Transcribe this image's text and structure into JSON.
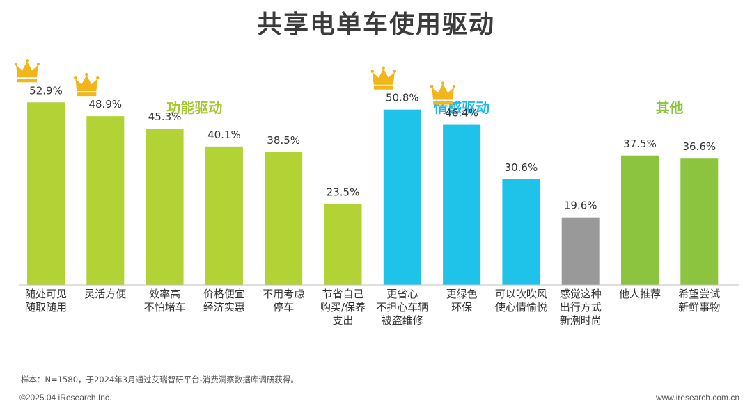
{
  "title": "共享电单车使用驱动",
  "chart_data": {
    "type": "bar",
    "unit": "%",
    "ylim": [
      0,
      60
    ],
    "groups": [
      {
        "label": "功能驱动",
        "color": "#b2d235",
        "label_color": "#a4c832",
        "start": 0,
        "end": 5
      },
      {
        "label": "情感驱动",
        "color": "#1fc3ea",
        "label_color": "#1cb8e6",
        "start": 6,
        "end": 8
      },
      {
        "label": "其他",
        "color": "#8cc43f",
        "label_color": "#8cc43f",
        "start": 10,
        "end": 11
      }
    ],
    "categories": [
      [
        "随处可见",
        "随取随用"
      ],
      [
        "灵活方便"
      ],
      [
        "效率高",
        "不怕堵车"
      ],
      [
        "价格便宜",
        "经济实惠"
      ],
      [
        "不用考虑",
        "停车"
      ],
      [
        "节省自己",
        "购买/保养",
        "支出"
      ],
      [
        "更省心",
        "不担心车辆",
        "被盗维修"
      ],
      [
        "更绿色",
        "环保"
      ],
      [
        "可以吹吹风",
        "使心情愉悦"
      ],
      [
        "感觉这种",
        "出行方式",
        "新潮时尚"
      ],
      [
        "他人推荐"
      ],
      [
        "希望尝试",
        "新鲜事物"
      ]
    ],
    "values": [
      52.9,
      48.9,
      45.3,
      40.1,
      38.5,
      23.5,
      50.8,
      46.4,
      30.6,
      19.6,
      37.5,
      36.6
    ],
    "value_labels": [
      "52.9%",
      "48.9%",
      "45.3%",
      "40.1%",
      "38.5%",
      "23.5%",
      "50.8%",
      "46.4%",
      "30.6%",
      "19.6%",
      "37.5%",
      "36.6%"
    ],
    "crowned": [
      0,
      1,
      6,
      7
    ],
    "crown_color": "#f2b51b"
  },
  "footer": {
    "note": "样本：N=1580，于2024年3月通过艾瑞智研平台-消费洞察数据库调研获得。",
    "copyright": "©2025.04 iResearch Inc.",
    "website": "www.iresearch.com.cn"
  }
}
